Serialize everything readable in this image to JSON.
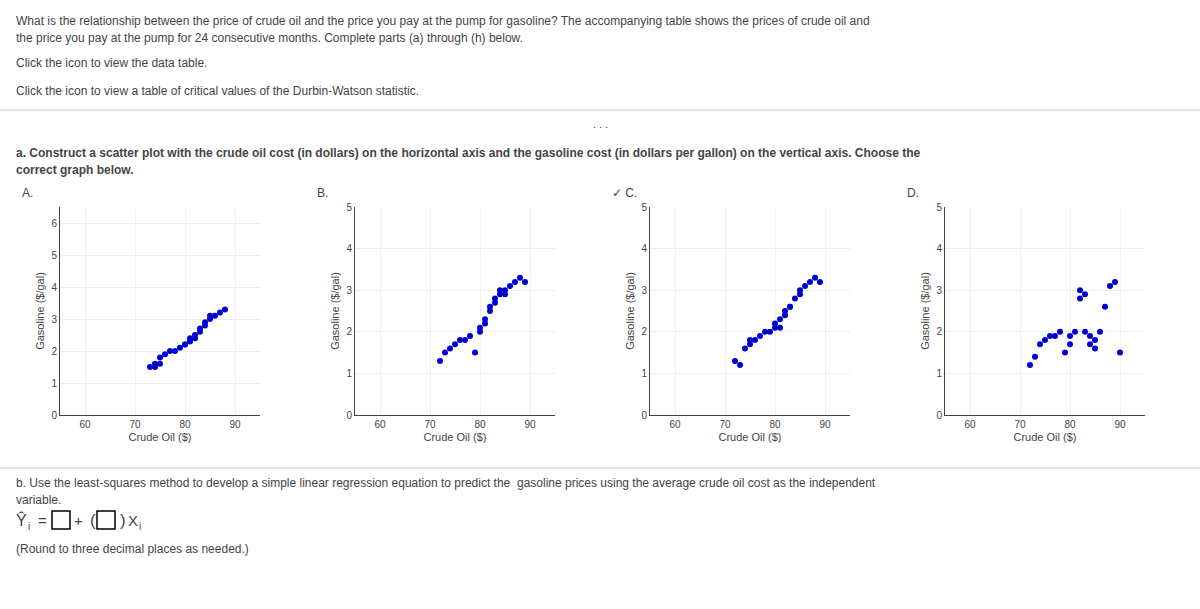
{
  "annotations": [
    "What is the relationship between the price of crude oil and the price you pay at the pump for gasoline? The accompanying table shows the prices of crude oil and",
    "the price you pay at the pump for 24 consecutive months. Complete parts (a) through (h) below.",
    "Click the icon to view the data table.",
    "Click the icon to view a table of critical values of the Durbin-Watson statistic.",
    ". . .",
    "a. Construct a scatter plot with the crude oil cost (in dollars) on the horizontal axis and the gasoline cost (in dollars per gallon) on the vertical axis. Choose the",
    "correct graph below.",
    "b. Use the least-squares method to develop a simple linear regression equation to predict the  gasoline prices using the average crude oil cost as the independent",
    "variable.",
    "Ŷ",
    "i",
    "=",
    "+",
    "(",
    ")",
    "X",
    "i",
    "(Round to three decimal places as needed.)"
  ],
  "chart_data": [
    {
      "type": "scatter",
      "title": "A.",
      "xlabel": "Crude Oil ($)",
      "ylabel": "Gasoline ($/gal)",
      "x": [
        73,
        74,
        74,
        75,
        75,
        76,
        77,
        78,
        79,
        80,
        80,
        81,
        81,
        82,
        82,
        83,
        83,
        84,
        84,
        85,
        85,
        86,
        87,
        88
      ],
      "values": [
        1.5,
        1.5,
        1.6,
        1.6,
        1.8,
        1.9,
        2.0,
        2.0,
        2.1,
        2.2,
        2.2,
        2.3,
        2.4,
        2.4,
        2.5,
        2.6,
        2.7,
        2.8,
        2.9,
        3.0,
        3.1,
        3.1,
        3.2,
        3.3
      ],
      "xlim": [
        55,
        95
      ],
      "xticks": [
        60,
        70,
        80,
        90
      ],
      "ylim": [
        0,
        6.5
      ],
      "yticks": [
        0,
        1,
        2,
        3,
        4,
        5,
        6
      ],
      "grid": true,
      "color": "#0000cc",
      "marker": "circle"
    },
    {
      "type": "scatter",
      "title": "B.",
      "xlabel": "Crude Oil ($)",
      "ylabel": "Gasoline ($/gal)",
      "x": [
        72,
        73,
        74,
        75,
        76,
        77,
        78,
        79,
        80,
        80,
        81,
        81,
        82,
        82,
        83,
        83,
        84,
        84,
        85,
        85,
        86,
        87,
        88,
        89
      ],
      "values": [
        1.3,
        1.5,
        1.6,
        1.7,
        1.8,
        1.8,
        1.9,
        1.5,
        2.0,
        2.1,
        2.2,
        2.3,
        2.5,
        2.6,
        2.7,
        2.8,
        2.9,
        3.0,
        2.9,
        3.0,
        3.1,
        3.2,
        3.3,
        3.2
      ],
      "xlim": [
        55,
        95
      ],
      "xticks": [
        60,
        70,
        80,
        90
      ],
      "ylim": [
        0,
        5
      ],
      "yticks": [
        0,
        1,
        2,
        3,
        4,
        5
      ],
      "grid": true,
      "color": "#0000cc",
      "marker": "circle"
    },
    {
      "type": "scatter",
      "title": "✓ C.",
      "xlabel": "Crude Oil ($)",
      "ylabel": "Gasoline ($/gal)",
      "x": [
        72,
        73,
        74,
        75,
        75,
        76,
        77,
        78,
        79,
        80,
        80,
        81,
        81,
        82,
        82,
        83,
        83,
        84,
        85,
        85,
        86,
        87,
        88,
        89
      ],
      "values": [
        1.3,
        1.2,
        1.6,
        1.7,
        1.8,
        1.8,
        1.9,
        2.0,
        2.0,
        2.1,
        2.2,
        2.1,
        2.3,
        2.4,
        2.5,
        2.6,
        2.6,
        2.8,
        2.9,
        3.0,
        3.1,
        3.2,
        3.3,
        3.2
      ],
      "xlim": [
        55,
        95
      ],
      "xticks": [
        60,
        70,
        80,
        90
      ],
      "ylim": [
        0,
        5
      ],
      "yticks": [
        0,
        1,
        2,
        3,
        4,
        5
      ],
      "grid": true,
      "color": "#0000cc",
      "marker": "circle"
    },
    {
      "type": "scatter",
      "title": "D.",
      "xlabel": "Crude Oil ($)",
      "ylabel": "Gasoline ($/gal)",
      "x": [
        72,
        73,
        74,
        75,
        76,
        77,
        78,
        79,
        80,
        80,
        81,
        82,
        82,
        83,
        83,
        84,
        84,
        85,
        85,
        86,
        87,
        88,
        89,
        90
      ],
      "values": [
        1.2,
        1.4,
        1.7,
        1.8,
        1.9,
        1.9,
        2.0,
        1.5,
        1.7,
        1.9,
        2.0,
        2.8,
        3.0,
        2.9,
        2.0,
        1.7,
        1.9,
        1.6,
        1.8,
        2.0,
        2.6,
        3.1,
        3.2,
        1.5
      ],
      "xlim": [
        55,
        95
      ],
      "xticks": [
        60,
        70,
        80,
        90
      ],
      "ylim": [
        0,
        5
      ],
      "yticks": [
        0,
        1,
        2,
        3,
        4,
        5
      ],
      "grid": true,
      "color": "#0000cc",
      "marker": "circle"
    }
  ]
}
